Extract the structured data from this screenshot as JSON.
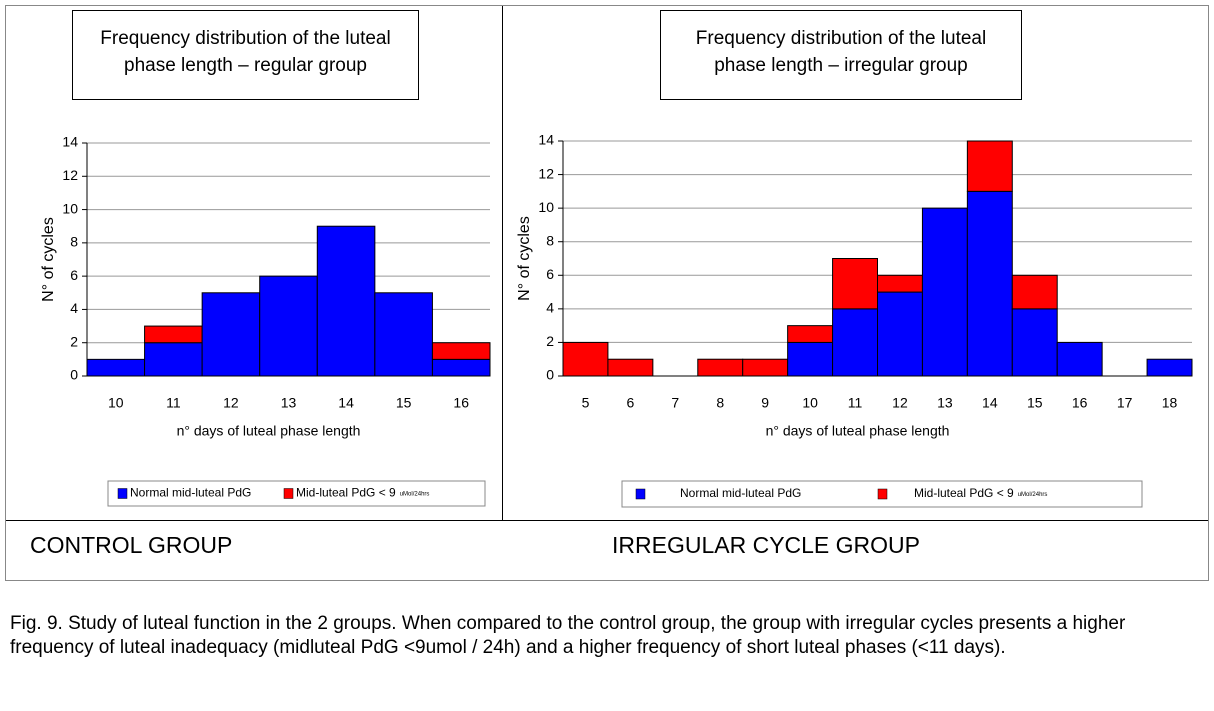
{
  "chart_data": [
    {
      "type": "bar",
      "stacked": true,
      "title": "Frequency distribution of the luteal phase length – regular group",
      "group_label": "CONTROL GROUP",
      "x_label": "n° days of luteal phase length",
      "y_label": "N° of cycles",
      "categories": [
        "10",
        "11",
        "12",
        "13",
        "14",
        "15",
        "16"
      ],
      "series": [
        {
          "name": "Normal mid-luteal PdG",
          "color": "#0000ff",
          "values": [
            1,
            2,
            5,
            6,
            9,
            5,
            1
          ]
        },
        {
          "name": "Mid-luteal PdG < 9",
          "unit": "uMol/24hrs",
          "color": "#ff0000",
          "values": [
            0,
            1,
            0,
            0,
            0,
            0,
            1
          ]
        }
      ],
      "ylim": [
        0,
        14
      ],
      "yticks": [
        0,
        2,
        4,
        6,
        8,
        10,
        12,
        14
      ],
      "grid": true
    },
    {
      "type": "bar",
      "stacked": true,
      "title": "Frequency distribution of the luteal phase length – irregular group",
      "group_label": "IRREGULAR CYCLE GROUP",
      "x_label": "n° days of luteal phase length",
      "y_label": "N° of cycles",
      "categories": [
        "5",
        "6",
        "7",
        "8",
        "9",
        "10",
        "11",
        "12",
        "13",
        "14",
        "15",
        "16",
        "17",
        "18"
      ],
      "series": [
        {
          "name": "Normal mid-luteal PdG",
          "color": "#0000ff",
          "values": [
            0,
            0,
            0,
            0,
            0,
            2,
            4,
            5,
            10,
            11,
            4,
            2,
            0,
            1
          ]
        },
        {
          "name": "Mid-luteal PdG < 9",
          "unit": "uMol/24hrs",
          "color": "#ff0000",
          "values": [
            2,
            1,
            0,
            1,
            1,
            1,
            3,
            1,
            0,
            3,
            2,
            0,
            0,
            0
          ]
        }
      ],
      "ylim": [
        0,
        14
      ],
      "yticks": [
        0,
        2,
        4,
        6,
        8,
        10,
        12,
        14
      ],
      "grid": true
    }
  ],
  "caption": "Fig. 9. Study of luteal function in the 2 groups. When compared to the control group, the group with irregular cycles presents a higher frequency of luteal inadequacy (midluteal PdG <9umol / 24h) and a higher frequency of short luteal phases (<11 days)."
}
